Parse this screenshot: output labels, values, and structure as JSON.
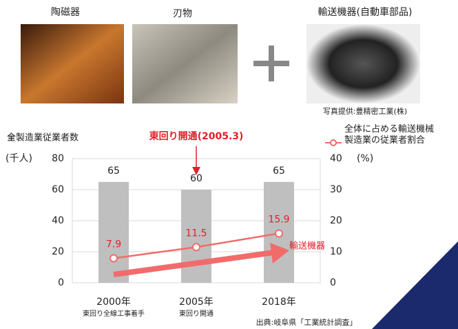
{
  "photos": {
    "labels": [
      "陶磁器",
      "刃物",
      "輸送機器(自動車部品)"
    ],
    "credit": "写真提供:豊精密工業(株)"
  },
  "chart_data": {
    "type": "bar",
    "categories": [
      "2000年",
      "2005年",
      "2018年"
    ],
    "category_notes": [
      "東回り全線工事着手",
      "東回り開通",
      null
    ],
    "ylabel": "(千人)",
    "y2label": "(%)",
    "ylim": [
      0,
      80
    ],
    "yticks": [
      0,
      20,
      40,
      60,
      80
    ],
    "y2lim": [
      0,
      40
    ],
    "y2ticks": [
      0,
      10,
      20,
      30,
      40
    ],
    "grid": true,
    "series": [
      {
        "name": "■全製造業従業者数",
        "color": "#bfbfbf",
        "values": [
          65,
          60,
          65
        ]
      },
      {
        "name": "全体に占める輸送機械\n製造業の従業者割合",
        "color": "#f26b6b",
        "axis": "y2",
        "type": "line",
        "values": [
          7.9,
          11.5,
          15.9
        ]
      }
    ],
    "annotations": [
      "東回り開通(2005.3)",
      "輸送機器"
    ],
    "source": "出典:岐阜県「工業統計調査」"
  }
}
